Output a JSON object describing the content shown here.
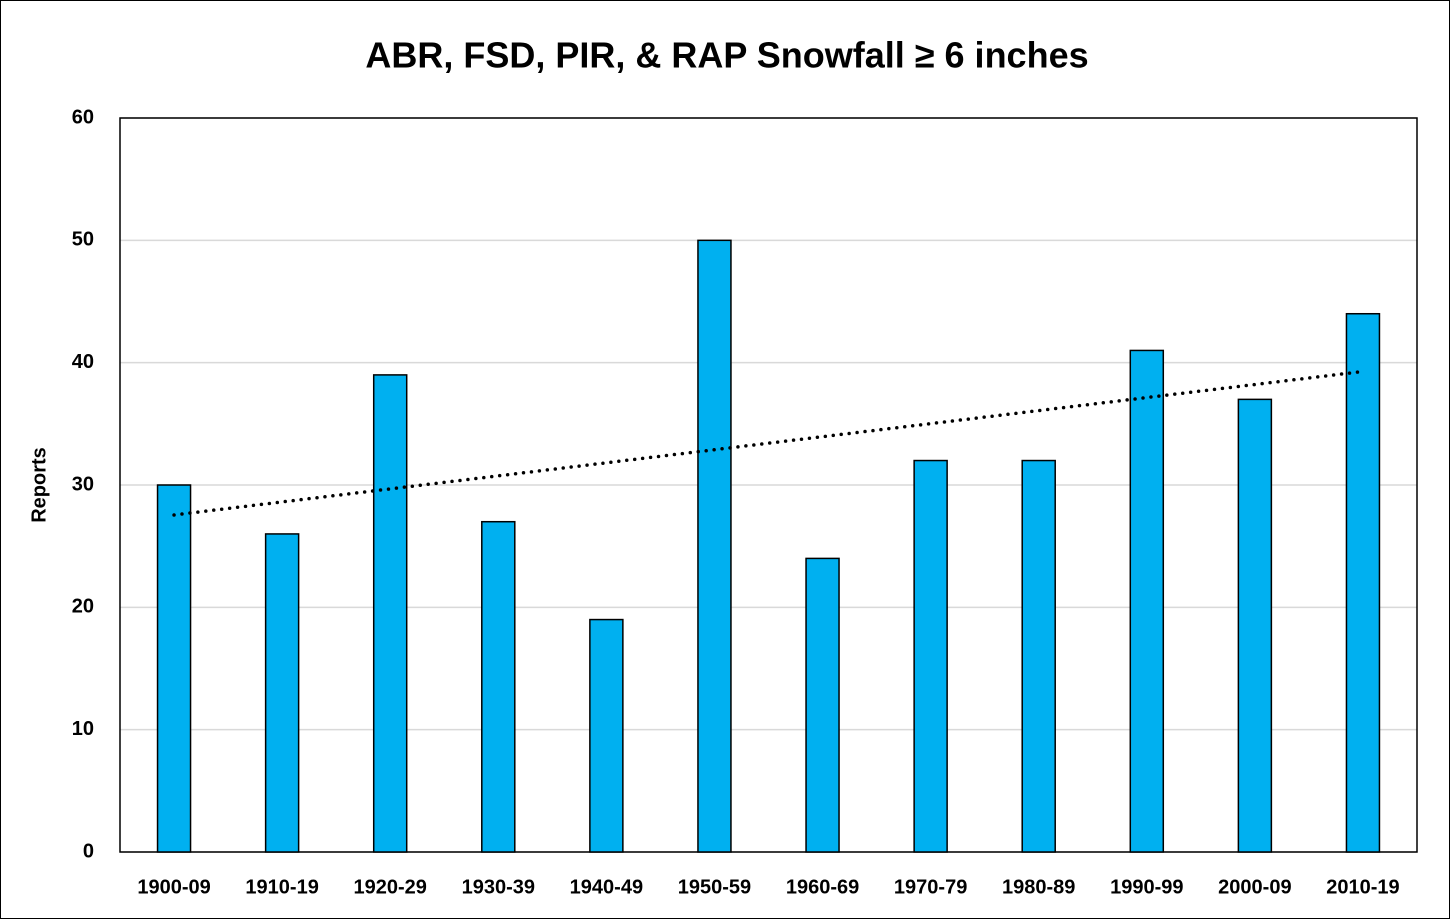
{
  "chart_data": {
    "type": "bar",
    "title": "ABR, FSD, PIR, & RAP Snowfall ≥ 6 inches",
    "y_label": "Reports",
    "categories": [
      "1900-09",
      "1910-19",
      "1920-29",
      "1930-39",
      "1940-49",
      "1950-59",
      "1960-69",
      "1970-79",
      "1980-89",
      "1990-99",
      "2000-09",
      "2010-19"
    ],
    "values": [
      30,
      26,
      39,
      27,
      19,
      50,
      24,
      32,
      32,
      41,
      37,
      44
    ],
    "color": "#00b0f0",
    "ylim": [
      0,
      60
    ],
    "yticks": [
      0,
      10,
      20,
      30,
      40,
      50,
      60
    ],
    "grid": true,
    "trendline": "linear"
  }
}
